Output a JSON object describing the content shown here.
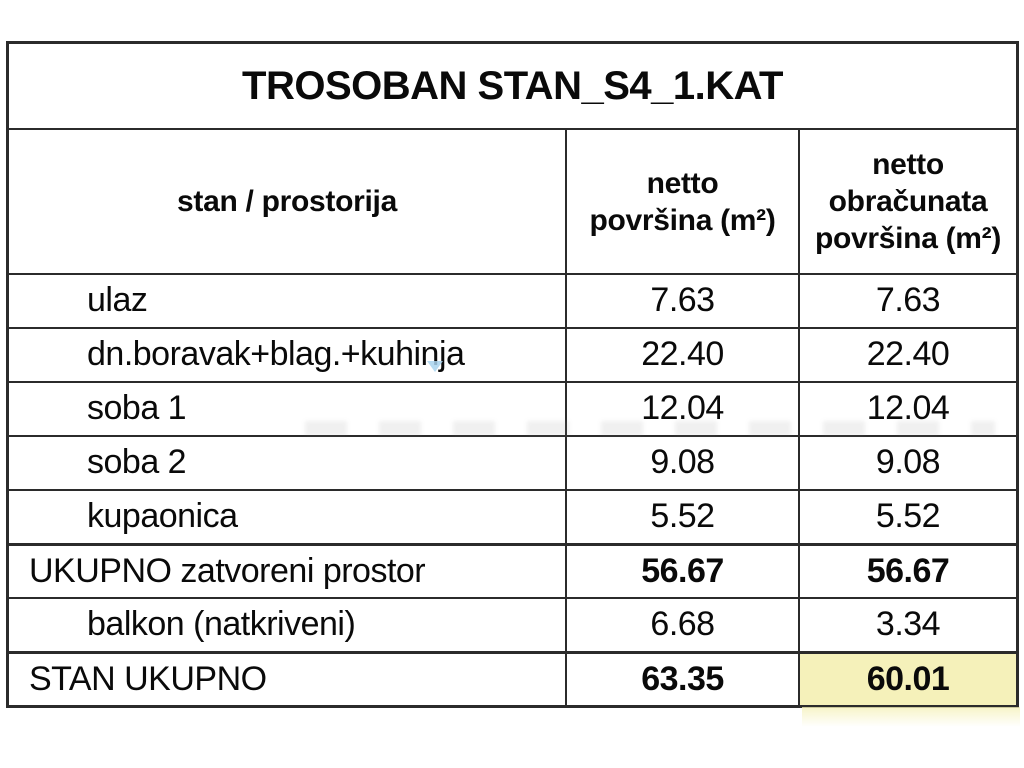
{
  "colors": {
    "page-bg": "#ffffff",
    "border": "#2b2b2b",
    "text": "#0a0a0a",
    "highlight": "#f5f1ba",
    "watermark-blue": "#a9d4ef",
    "smudge": "#8f8f8f"
  },
  "table": {
    "title": "TROSOBAN STAN_S4_1.KAT",
    "header": {
      "room_col": "stan / prostorija",
      "netto_col_lines": [
        "netto",
        "površina (m²)"
      ],
      "obracunata_col_lines": [
        "netto",
        "obračunata",
        "površina (m²)"
      ]
    },
    "rows": [
      {
        "label": "ulaz",
        "netto": "7.63",
        "obracunata": "7.63"
      },
      {
        "label": "dn.boravak+blag.+kuhinja",
        "netto": "22.40",
        "obracunata": "22.40"
      },
      {
        "label": "soba 1",
        "netto": "12.04",
        "obracunata": "12.04"
      },
      {
        "label": "soba 2",
        "netto": "9.08",
        "obracunata": "9.08"
      },
      {
        "label": "kupaonica",
        "netto": "5.52",
        "obracunata": "5.52"
      },
      {
        "label": "UKUPNO zatvoreni prostor",
        "netto": "56.67",
        "obracunata": "56.67"
      },
      {
        "label": "balkon (natkriveni)",
        "netto": "6.68",
        "obracunata": "3.34"
      },
      {
        "label": "STAN UKUPNO",
        "netto": "63.35",
        "obracunata": "60.01"
      }
    ]
  },
  "chart_data": {
    "type": "table",
    "title": "TROSOBAN STAN_S4_1.KAT",
    "columns": [
      "stan / prostorija",
      "netto površina (m²)",
      "netto obračunata površina (m²)"
    ],
    "rows": [
      [
        "ulaz",
        7.63,
        7.63
      ],
      [
        "dn.boravak+blag.+kuhinja",
        22.4,
        22.4
      ],
      [
        "soba 1",
        12.04,
        12.04
      ],
      [
        "soba 2",
        9.08,
        9.08
      ],
      [
        "kupaonica",
        5.52,
        5.52
      ],
      [
        "UKUPNO zatvoreni prostor",
        56.67,
        56.67
      ],
      [
        "balkon (natkriveni)",
        6.68,
        3.34
      ],
      [
        "STAN UKUPNO",
        63.35,
        60.01
      ]
    ],
    "notes": "highlighted cell: STAN UKUPNO obračunata = 60.01 (pale yellow)"
  }
}
